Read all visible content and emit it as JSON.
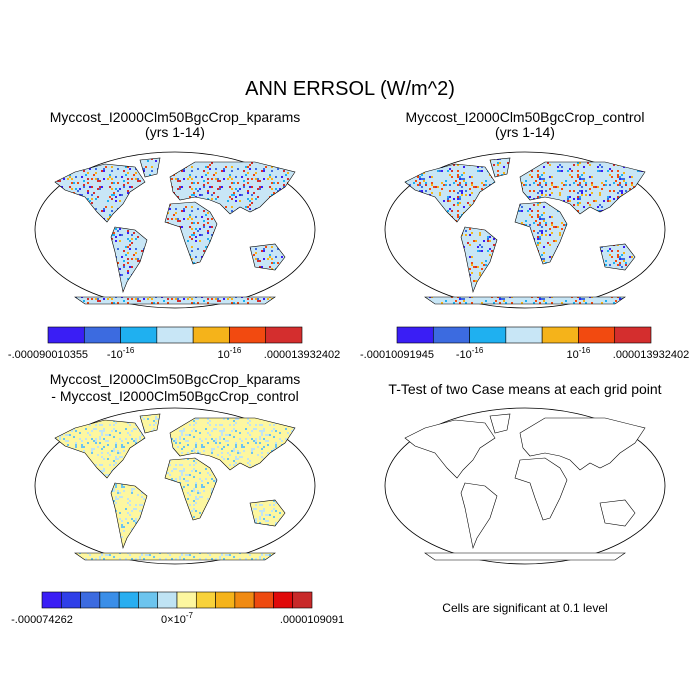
{
  "title": "ANN ERRSOL (W/m^2)",
  "panels": [
    {
      "title": "Myccost_I2000Clm50BgcCrop_kparams",
      "subtitle": "(yrs 1-14)",
      "colorbar": {
        "colors": [
          "#3a1ef5",
          "#3c6be0",
          "#1fb0f0",
          "#c8e6f6",
          "#f5b31a",
          "#f24a10",
          "#d42e2e"
        ],
        "labels": [
          {
            "text": "-.000090010355"
          },
          {
            "base": "-10",
            "exp": "-16"
          },
          {
            "base": "10",
            "exp": "-16"
          },
          {
            "text": ".000013932402"
          }
        ]
      }
    },
    {
      "title": "Myccost_I2000Clm50BgcCrop_control",
      "subtitle": "(yrs 1-14)",
      "colorbar": {
        "colors": [
          "#3a1ef5",
          "#3c6be0",
          "#1fb0f0",
          "#c8e6f6",
          "#f5b31a",
          "#f24a10",
          "#d42e2e"
        ],
        "labels": [
          {
            "text": "-.00010091945"
          },
          {
            "base": "-10",
            "exp": "-16"
          },
          {
            "base": "10",
            "exp": "-16"
          },
          {
            "text": ".000013932402"
          }
        ]
      }
    },
    {
      "title": "Myccost_I2000Clm50BgcCrop_kparams",
      "subtitle": "- Myccost_I2000Clm50BgcCrop_control",
      "colorbar": {
        "colors": [
          "#3a1ef5",
          "#2f3fe8",
          "#3c6be0",
          "#3a8ee8",
          "#29aef0",
          "#6cc4ee",
          "#bfe3f4",
          "#fdf7a0",
          "#f8d23a",
          "#f5b31a",
          "#f08a12",
          "#ee4a10",
          "#e00a0a",
          "#c82a2a"
        ],
        "labels": [
          {
            "text": "-.000074262"
          },
          {
            "base": "0×10",
            "exp": "-7"
          },
          {
            "text": ".0000109091"
          }
        ]
      }
    },
    {
      "title": "T-Test of two Case means at each grid point",
      "note": "Cells are significant at 0.1 level"
    }
  ]
}
